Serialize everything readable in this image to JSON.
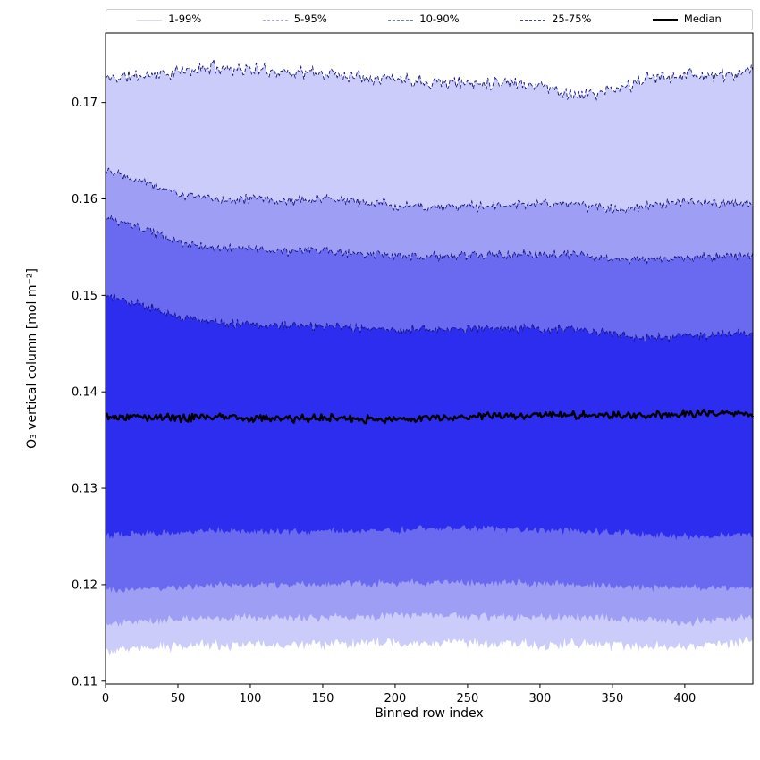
{
  "chart_data": {
    "type": "area",
    "title": "",
    "xlabel": "Binned row index",
    "ylabel": "O₃ vertical column [mol m⁻²]",
    "xlim": [
      0,
      447
    ],
    "ylim": [
      0.1097,
      0.1772
    ],
    "x_ticks": [
      0,
      50,
      100,
      150,
      200,
      250,
      300,
      350,
      400
    ],
    "y_ticks": [
      0.11,
      0.12,
      0.13,
      0.14,
      0.15,
      0.16,
      0.17
    ],
    "n_points": 448,
    "grid": false,
    "legend_position": "top-outside",
    "legend": {
      "entries": [
        {
          "label": "1-99%",
          "color": "#d9d9f2",
          "style": "solid",
          "width": 1
        },
        {
          "label": "5-95%",
          "color": "#a9a9ec",
          "style": "dashed",
          "width": 1.5
        },
        {
          "label": "10-90%",
          "color": "#7a7af0",
          "style": "dashed",
          "width": 1.5
        },
        {
          "label": "25-75%",
          "color": "#4040dd",
          "style": "dashed",
          "width": 1.5
        },
        {
          "label": "Median",
          "color": "#000000",
          "style": "solid",
          "width": 3
        }
      ]
    },
    "x_anchors": [
      0,
      25,
      50,
      75,
      100,
      125,
      150,
      175,
      200,
      225,
      250,
      275,
      300,
      325,
      350,
      375,
      400,
      425,
      447
    ],
    "boundaries": {
      "p99": {
        "values": [
          0.1725,
          0.1728,
          0.1731,
          0.1737,
          0.1734,
          0.1732,
          0.173,
          0.1728,
          0.1725,
          0.1722,
          0.172,
          0.1722,
          0.1718,
          0.1707,
          0.1712,
          0.1725,
          0.173,
          0.1727,
          0.1732
        ],
        "noise": 0.00055,
        "seed": 11
      },
      "p95": {
        "values": [
          0.1631,
          0.162,
          0.1605,
          0.16,
          0.16,
          0.1598,
          0.16,
          0.1597,
          0.1593,
          0.1592,
          0.1592,
          0.1593,
          0.1595,
          0.1594,
          0.159,
          0.1592,
          0.1596,
          0.1595,
          0.1597
        ],
        "noise": 0.0004,
        "seed": 22
      },
      "p90": {
        "values": [
          0.158,
          0.1569,
          0.1555,
          0.1549,
          0.1549,
          0.1545,
          0.1547,
          0.1543,
          0.154,
          0.154,
          0.1541,
          0.1542,
          0.1543,
          0.1542,
          0.1538,
          0.1536,
          0.154,
          0.154,
          0.1542
        ],
        "noise": 0.00035,
        "seed": 33
      },
      "p75": {
        "values": [
          0.15,
          0.149,
          0.1478,
          0.1472,
          0.147,
          0.1468,
          0.1468,
          0.1466,
          0.1464,
          0.1465,
          0.1466,
          0.1466,
          0.1466,
          0.1465,
          0.146,
          0.1456,
          0.1458,
          0.1459,
          0.1461
        ],
        "noise": 0.00035,
        "seed": 44
      },
      "median": {
        "values": [
          0.1375,
          0.1374,
          0.1373,
          0.1374,
          0.1373,
          0.1372,
          0.1373,
          0.1372,
          0.1371,
          0.1373,
          0.1374,
          0.1375,
          0.1376,
          0.1376,
          0.1375,
          0.1376,
          0.1377,
          0.1378,
          0.1377
        ],
        "noise": 0.0003,
        "seed": 55
      },
      "p25": {
        "values": [
          0.1252,
          0.1253,
          0.1255,
          0.1256,
          0.1256,
          0.1255,
          0.1256,
          0.1256,
          0.1257,
          0.1258,
          0.1258,
          0.1258,
          0.1257,
          0.1256,
          0.1255,
          0.1252,
          0.125,
          0.125,
          0.1252
        ],
        "noise": 0.0003,
        "seed": 66
      },
      "p10": {
        "values": [
          0.1195,
          0.1196,
          0.1198,
          0.1199,
          0.12,
          0.12,
          0.12,
          0.1201,
          0.1202,
          0.1202,
          0.1202,
          0.1202,
          0.1201,
          0.12,
          0.1199,
          0.1197,
          0.1196,
          0.1197,
          0.1198
        ],
        "noise": 0.0003,
        "seed": 77
      },
      "p05": {
        "values": [
          0.116,
          0.1162,
          0.1164,
          0.1165,
          0.1166,
          0.1166,
          0.1166,
          0.1167,
          0.1168,
          0.1168,
          0.1168,
          0.1167,
          0.1166,
          0.1166,
          0.1165,
          0.1163,
          0.1162,
          0.1164,
          0.1166
        ],
        "noise": 0.00035,
        "seed": 88
      },
      "p01": {
        "values": [
          0.1132,
          0.1134,
          0.1136,
          0.1137,
          0.1138,
          0.1138,
          0.1138,
          0.1139,
          0.114,
          0.114,
          0.114,
          0.1139,
          0.1138,
          0.1138,
          0.1137,
          0.1136,
          0.1136,
          0.1139,
          0.1142
        ],
        "noise": 0.00045,
        "seed": 99
      }
    },
    "bands": [
      {
        "name": "1-99%",
        "fill": "#ccccfa",
        "upper": "p99",
        "lower": "p01"
      },
      {
        "name": "5-95%",
        "fill": "#9e9ef5",
        "upper": "p95",
        "lower": "p05"
      },
      {
        "name": "10-90%",
        "fill": "#6a6af0",
        "upper": "p90",
        "lower": "p10"
      },
      {
        "name": "25-75%",
        "fill": "#2d2df0",
        "upper": "p75",
        "lower": "p25"
      }
    ],
    "edge_line": {
      "color": "#15157a",
      "width": 0.9,
      "dash": "4 2.5"
    },
    "median_line": {
      "color": "#000000",
      "width": 2.4
    }
  }
}
